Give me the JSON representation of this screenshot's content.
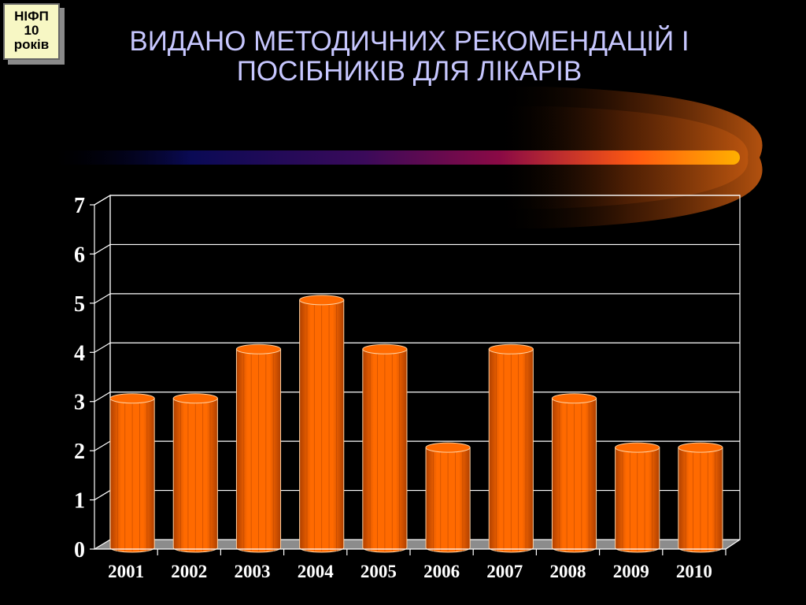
{
  "badge": {
    "line1": "НІФП",
    "line2": "10",
    "line3": "років"
  },
  "title": {
    "line1": "ВИДАНО МЕТОДИЧНИХ РЕКОМЕНДАЦІЙ І",
    "line2": "ПОСІБНИКІВ ДЛЯ ЛІКАРІВ"
  },
  "colors": {
    "background": "#000000",
    "title": "#c7c7ff",
    "bar_front": "#ff6a00",
    "bar_dark": "#b04000",
    "bar_edge": "#ffd0a0",
    "gridline": "#ffffff",
    "floor": "#8c8c8c"
  },
  "chart_data": {
    "type": "bar",
    "title": "",
    "xlabel": "",
    "ylabel": "",
    "categories": [
      "2001",
      "2002",
      "2003",
      "2004",
      "2005",
      "2006",
      "2007",
      "2008",
      "2009",
      "2010"
    ],
    "values": [
      3,
      3,
      4,
      5,
      4,
      2,
      4,
      3,
      2,
      2
    ],
    "ylim": [
      0,
      7
    ],
    "yticks": [
      "0",
      "1",
      "2",
      "3",
      "4",
      "5",
      "6",
      "7"
    ],
    "grid": true,
    "legend": "none",
    "style": "3d-cylinder"
  }
}
